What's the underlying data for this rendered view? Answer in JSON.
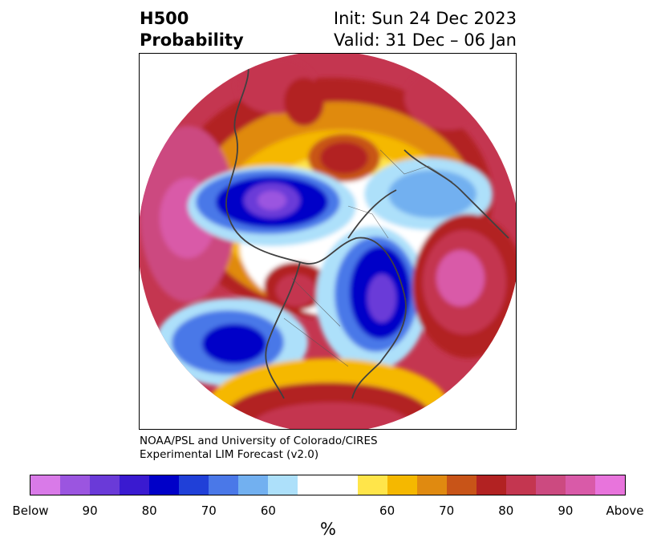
{
  "title": {
    "left_line1": "H500",
    "left_line2": "Probability",
    "right_line1": "Init: Sun 24 Dec 2023",
    "right_line2": "Valid: 31 Dec – 06 Jan"
  },
  "credit": {
    "line1": "NOAA/PSL and University of Colorado/CIRES",
    "line2": "Experimental LIM Forecast (v2.0)"
  },
  "colorbar": {
    "unit": "%",
    "below_colors": [
      "#d97ae8",
      "#9b55e0",
      "#6a3ad8",
      "#3a1ad0",
      "#0000c8",
      "#2040d8",
      "#4a78e8",
      "#72b0f0",
      "#ade0fa"
    ],
    "neutral_color": "#ffffff",
    "above_colors": [
      "#ffe54a",
      "#f5b800",
      "#e08a10",
      "#c85418",
      "#b22222",
      "#c43650",
      "#cc4a80",
      "#d95aa8",
      "#e874dc"
    ],
    "tick_labels": [
      "Below",
      "90",
      "80",
      "70",
      "60",
      "60",
      "70",
      "80",
      "90",
      "Above"
    ]
  },
  "map": {
    "projection": "north-polar-stereographic",
    "field": "500 hPa height anomaly probability"
  }
}
